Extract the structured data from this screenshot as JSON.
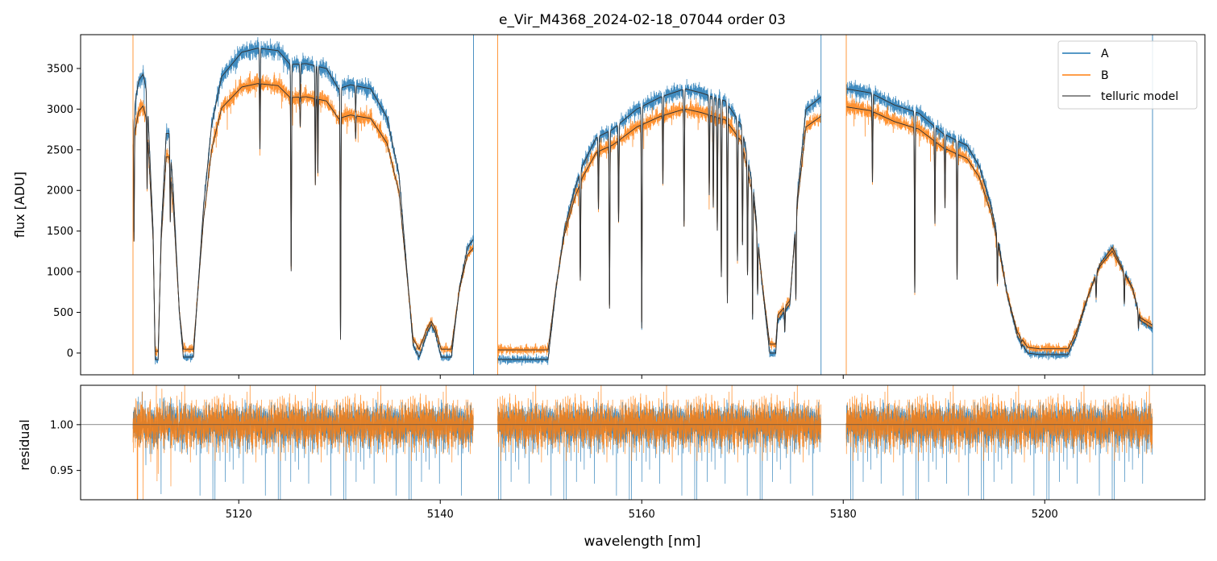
{
  "chart_data": [
    {
      "type": "line",
      "title": "e_Vir_M4368_2024-02-18_07044  order 03",
      "xlabel": "wavelength [nm]",
      "ylabel": "flux [ADU]",
      "xlim": [
        5104.3,
        5215.9
      ],
      "ylim": [
        -268,
        3916
      ],
      "yticks": [
        0,
        500,
        1000,
        1500,
        2000,
        2500,
        3000,
        3500
      ],
      "xticks": [
        5120,
        5140,
        5160,
        5180,
        5200
      ],
      "legend": {
        "placement": "top-right",
        "entries": [
          "A",
          "B",
          "telluric model"
        ]
      },
      "colors": {
        "A": "#1f77b4",
        "B": "#ff7f0e",
        "model": "#333333"
      },
      "segments": [
        {
          "range": [
            5109.5,
            5143.3
          ],
          "B_scale": 0.86,
          "B_offset": 90,
          "continuum": [
            [
              5109.5,
              2900
            ],
            [
              5110.06,
              3350
            ],
            [
              5110.5,
              3430
            ],
            [
              5110.9,
              3200
            ],
            [
              5111.5,
              1500
            ],
            [
              5111.7,
              -80
            ],
            [
              5112.0,
              -80
            ],
            [
              5112.3,
              1500
            ],
            [
              5112.8,
              2700
            ],
            [
              5113.1,
              2700
            ],
            [
              5113.5,
              2000
            ],
            [
              5114.1,
              500
            ],
            [
              5114.5,
              -50
            ],
            [
              5115.5,
              -50
            ],
            [
              5115.9,
              700
            ],
            [
              5116.5,
              1800
            ],
            [
              5117.3,
              2800
            ],
            [
              5118.3,
              3400
            ],
            [
              5120.3,
              3700
            ],
            [
              5121.9,
              3750
            ],
            [
              5123.9,
              3720
            ],
            [
              5125.1,
              3550
            ],
            [
              5126.7,
              3560
            ],
            [
              5128.7,
              3500
            ],
            [
              5129.9,
              3250
            ],
            [
              5131.1,
              3300
            ],
            [
              5133.1,
              3250
            ],
            [
              5134.7,
              2900
            ],
            [
              5135.9,
              2200
            ],
            [
              5136.7,
              1000
            ],
            [
              5137.3,
              100
            ],
            [
              5137.9,
              -50
            ],
            [
              5138.7,
              250
            ],
            [
              5139.1,
              350
            ],
            [
              5139.5,
              250
            ],
            [
              5140.1,
              -50
            ],
            [
              5141.1,
              -50
            ],
            [
              5141.9,
              800
            ],
            [
              5142.7,
              1300
            ],
            [
              5143.3,
              1400
            ]
          ],
          "lines": [
            [
              5109.6,
              0.5
            ],
            [
              5110.9,
              0.3
            ],
            [
              5113.2,
              0.3
            ],
            [
              5122.1,
              0.25
            ],
            [
              5125.2,
              0.7
            ],
            [
              5126.1,
              0.12
            ],
            [
              5127.6,
              0.35
            ],
            [
              5127.85,
              0.3
            ],
            [
              5130.1,
              0.95
            ],
            [
              5131.6,
              0.1
            ]
          ]
        },
        {
          "range": [
            5145.7,
            5177.8
          ],
          "B_scale": 0.89,
          "B_offset": 110,
          "continuum": [
            [
              5145.7,
              -80
            ],
            [
              5150.7,
              -80
            ],
            [
              5151.5,
              800
            ],
            [
              5152.3,
              1500
            ],
            [
              5153.3,
              2000
            ],
            [
              5154.1,
              2300
            ],
            [
              5155.5,
              2650
            ],
            [
              5157.1,
              2750
            ],
            [
              5159.5,
              3000
            ],
            [
              5161.9,
              3150
            ],
            [
              5164.3,
              3250
            ],
            [
              5165.9,
              3200
            ],
            [
              5168.3,
              3100
            ],
            [
              5169.9,
              2800
            ],
            [
              5171.1,
              2000
            ],
            [
              5171.9,
              900
            ],
            [
              5172.7,
              0
            ],
            [
              5173.3,
              0
            ],
            [
              5173.5,
              400
            ],
            [
              5174.7,
              600
            ],
            [
              5175.5,
              2000
            ],
            [
              5176.3,
              3000
            ],
            [
              5177.8,
              3150
            ]
          ],
          "lines": [
            [
              5153.9,
              0.6
            ],
            [
              5155.7,
              0.3
            ],
            [
              5156.8,
              0.8
            ],
            [
              5157.7,
              0.4
            ],
            [
              5160.0,
              0.9
            ],
            [
              5162.1,
              0.3
            ],
            [
              5164.2,
              0.5
            ],
            [
              5166.7,
              0.35
            ],
            [
              5167.1,
              0.4
            ],
            [
              5167.5,
              0.5
            ],
            [
              5167.9,
              0.7
            ],
            [
              5168.5,
              0.8
            ],
            [
              5169.5,
              0.6
            ],
            [
              5170.0,
              0.5
            ],
            [
              5170.5,
              0.6
            ],
            [
              5171.0,
              0.8
            ],
            [
              5171.5,
              0.5
            ],
            [
              5174.2,
              0.5
            ],
            [
              5175.3,
              0.6
            ]
          ]
        },
        {
          "range": [
            5180.3,
            5210.7
          ],
          "B_scale": 0.91,
          "B_offset": 70,
          "continuum": [
            [
              5180.3,
              3250
            ],
            [
              5182.7,
              3200
            ],
            [
              5185.1,
              3050
            ],
            [
              5187.5,
              2950
            ],
            [
              5189.9,
              2700
            ],
            [
              5192.3,
              2550
            ],
            [
              5193.5,
              2300
            ],
            [
              5194.7,
              1800
            ],
            [
              5195.5,
              1300
            ],
            [
              5196.3,
              700
            ],
            [
              5197.3,
              200
            ],
            [
              5198.3,
              0
            ],
            [
              5199.5,
              -20
            ],
            [
              5202.3,
              -20
            ],
            [
              5203.1,
              200
            ],
            [
              5204.3,
              700
            ],
            [
              5205.5,
              1100
            ],
            [
              5206.7,
              1300
            ],
            [
              5207.9,
              1000
            ],
            [
              5208.7,
              800
            ],
            [
              5209.5,
              400
            ],
            [
              5210.7,
              300
            ]
          ],
          "lines": [
            [
              5182.9,
              0.3
            ],
            [
              5187.1,
              0.75
            ],
            [
              5189.1,
              0.4
            ],
            [
              5190.1,
              0.3
            ],
            [
              5191.3,
              0.65
            ],
            [
              5195.3,
              0.4
            ],
            [
              5197.7,
              0.4
            ],
            [
              5205.1,
              0.3
            ],
            [
              5207.9,
              0.4
            ],
            [
              5209.3,
              0.4
            ]
          ]
        }
      ]
    },
    {
      "type": "line",
      "xlabel": "wavelength [nm]",
      "ylabel": "residual",
      "xlim": [
        5104.3,
        5215.9
      ],
      "ylim": [
        0.918,
        1.043
      ],
      "yticks": [
        0.95,
        1.0
      ],
      "ytick_labels": [
        "0.95",
        "1.00"
      ],
      "xticks": [
        5120,
        5140,
        5160,
        5180,
        5200
      ],
      "reference_line": 1.0,
      "noise_sigma": 0.011
    }
  ]
}
